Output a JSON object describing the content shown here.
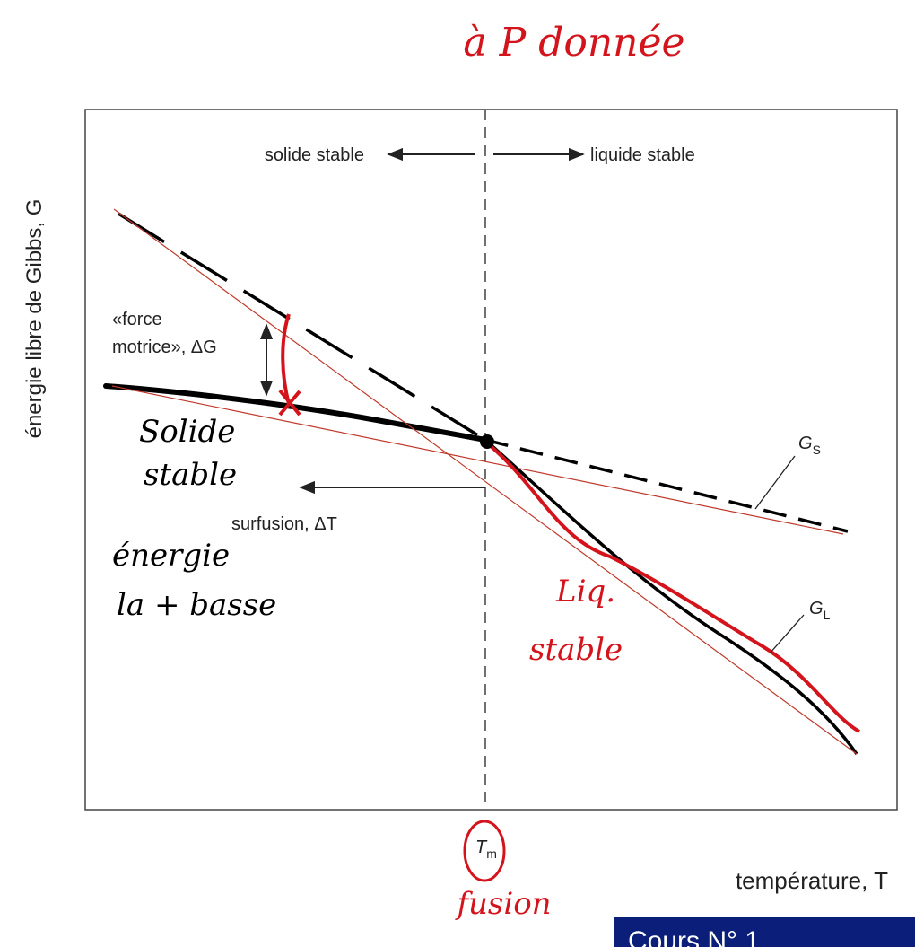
{
  "handwritten_title": "à P donnée",
  "axes": {
    "y_label": "énergie libre de Gibbs, G",
    "x_label": "température, T",
    "tm": {
      "main": "T",
      "sub": "m"
    }
  },
  "regions": {
    "left": "solide stable",
    "right": "liquide stable"
  },
  "annotations": {
    "driving_force_line1": "«force",
    "driving_force_line2": "motrice», ΔG",
    "undercooling": "surfusion, ΔT"
  },
  "curves": {
    "gs": {
      "main": "G",
      "sub": "S"
    },
    "gl": {
      "main": "G",
      "sub": "L"
    }
  },
  "handwritten_notes": {
    "solid_line1": "Solide",
    "solid_line2": "stable",
    "energy_line1": "énergie",
    "energy_line2": "la + basse",
    "liquid_line1": "Liq.",
    "liquid_line2": "stable",
    "fusion": "fusion"
  },
  "footer_badge": "Cours N° 1"
}
